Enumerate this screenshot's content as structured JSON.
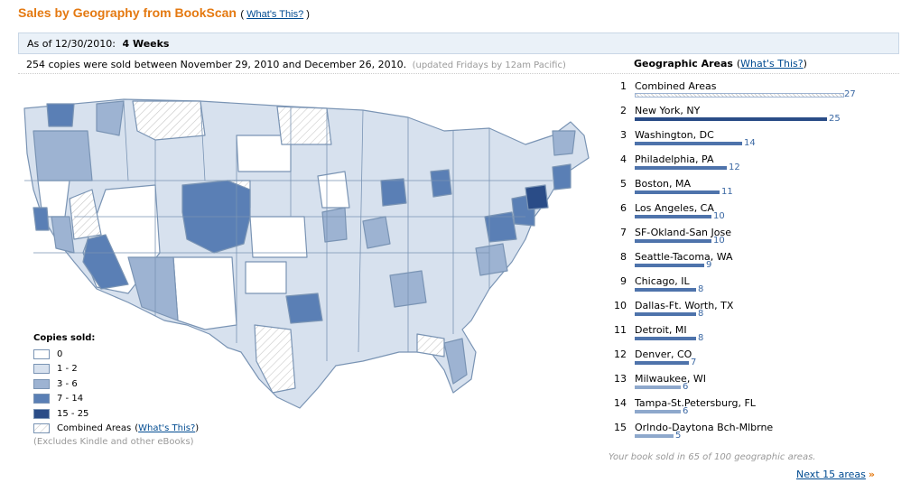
{
  "header": {
    "title": "Sales by Geography from BookScan",
    "help_open": "(",
    "help_link": "What's This?",
    "help_close": ")"
  },
  "period": {
    "as_of_label": "As of 12/30/2010:",
    "window": "4 Weeks"
  },
  "summary": {
    "text": "254 copies were sold between November 29, 2010 and December 26, 2010.",
    "updated": "(updated Fridays by 12am Pacific)"
  },
  "legend": {
    "title": "Copies sold:",
    "items": [
      {
        "label": "0",
        "color": "#ffffff"
      },
      {
        "label": "1 - 2",
        "color": "#d7e1ee"
      },
      {
        "label": "3 - 6",
        "color": "#9db3d2"
      },
      {
        "label": "7 - 14",
        "color": "#5a7fb5"
      },
      {
        "label": "15 - 25",
        "color": "#2a4c87"
      }
    ],
    "combined_label": "Combined Areas",
    "combined_link": "What's This?",
    "note": "(Excludes Kindle and other eBooks)"
  },
  "geo": {
    "heading": "Geographic Areas",
    "help_link": "What's This?",
    "areas": [
      {
        "rank": "1",
        "name": "Combined Areas",
        "value": "27",
        "combined": true
      },
      {
        "rank": "2",
        "name": "New York, NY",
        "value": "25"
      },
      {
        "rank": "3",
        "name": "Washington, DC",
        "value": "14"
      },
      {
        "rank": "4",
        "name": "Philadelphia, PA",
        "value": "12"
      },
      {
        "rank": "5",
        "name": "Boston, MA",
        "value": "11"
      },
      {
        "rank": "6",
        "name": "Los Angeles, CA",
        "value": "10"
      },
      {
        "rank": "7",
        "name": "SF-Okland-San Jose",
        "value": "10"
      },
      {
        "rank": "8",
        "name": "Seattle-Tacoma, WA",
        "value": "9"
      },
      {
        "rank": "9",
        "name": "Chicago, IL",
        "value": "8"
      },
      {
        "rank": "10",
        "name": "Dallas-Ft. Worth, TX",
        "value": "8"
      },
      {
        "rank": "11",
        "name": "Detroit, MI",
        "value": "8"
      },
      {
        "rank": "12",
        "name": "Denver, CO",
        "value": "7"
      },
      {
        "rank": "13",
        "name": "Milwaukee, WI",
        "value": "6"
      },
      {
        "rank": "14",
        "name": "Tampa-St.Petersburg, FL",
        "value": "6"
      },
      {
        "rank": "15",
        "name": "Orlndo-Daytona Bch-Mlbrne",
        "value": "5"
      }
    ]
  },
  "footer": {
    "sold_in": "Your book sold in 65 of 100 geographic areas.",
    "next_link": "Next 15 areas",
    "next_arrow": "»"
  }
}
